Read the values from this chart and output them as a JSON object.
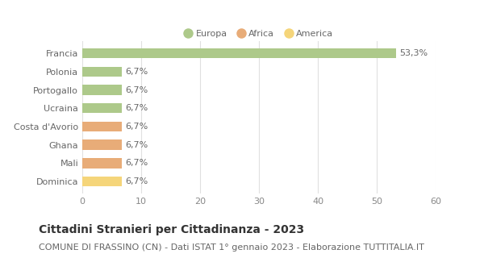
{
  "categories": [
    "Dominica",
    "Mali",
    "Ghana",
    "Costa d'Avorio",
    "Ucraina",
    "Portogallo",
    "Polonia",
    "Francia"
  ],
  "values": [
    6.7,
    6.7,
    6.7,
    6.7,
    6.7,
    6.7,
    6.7,
    53.3
  ],
  "colors": [
    "#f5d57a",
    "#e8ac78",
    "#e8ac78",
    "#e8ac78",
    "#adc98a",
    "#adc98a",
    "#adc98a",
    "#adc98a"
  ],
  "labels": [
    "6,7%",
    "6,7%",
    "6,7%",
    "6,7%",
    "6,7%",
    "6,7%",
    "6,7%",
    "53,3%"
  ],
  "xlim": [
    0,
    60
  ],
  "xticks": [
    0,
    10,
    20,
    30,
    40,
    50,
    60
  ],
  "legend_items": [
    {
      "label": "Europa",
      "color": "#adc98a"
    },
    {
      "label": "Africa",
      "color": "#e8ac78"
    },
    {
      "label": "America",
      "color": "#f5d57a"
    }
  ],
  "title": "Cittadini Stranieri per Cittadinanza - 2023",
  "subtitle": "COMUNE DI FRASSINO (CN) - Dati ISTAT 1° gennaio 2023 - Elaborazione TUTTITALIA.IT",
  "title_fontsize": 10,
  "subtitle_fontsize": 8,
  "label_fontsize": 8,
  "tick_fontsize": 8,
  "bg_color": "#ffffff",
  "grid_color": "#e0e0e0"
}
